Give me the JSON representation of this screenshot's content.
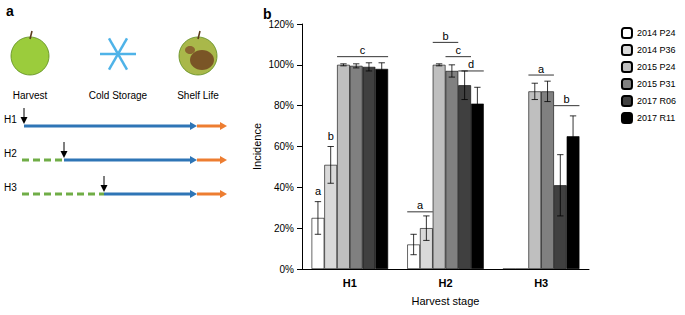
{
  "panel_a": {
    "label": "a",
    "stages": [
      "Harvest",
      "Cold Storage",
      "Shelf Life"
    ],
    "rows": [
      "H1",
      "H2",
      "H3"
    ]
  },
  "chart_data": {
    "type": "bar",
    "title": "b",
    "x_label": "Harvest stage",
    "y_label": "Incidence",
    "categories": [
      "H1",
      "H2",
      "H3"
    ],
    "series": [
      {
        "name": "2014 P24",
        "color": "#ffffff",
        "values": [
          25,
          12,
          0
        ],
        "errors": [
          8,
          5,
          0
        ]
      },
      {
        "name": "2014 P36",
        "color": "#d9d9d9",
        "values": [
          51,
          20,
          0
        ],
        "errors": [
          9,
          6,
          0
        ]
      },
      {
        "name": "2015 P24",
        "color": "#bfbfbf",
        "values": [
          100,
          100,
          87
        ],
        "errors": [
          0.5,
          0.5,
          4
        ]
      },
      {
        "name": "2015 P31",
        "color": "#808080",
        "values": [
          99.5,
          97,
          87
        ],
        "errors": [
          1,
          3,
          5
        ]
      },
      {
        "name": "2017 R06",
        "color": "#404040",
        "values": [
          99,
          90,
          41
        ],
        "errors": [
          2,
          7,
          15
        ]
      },
      {
        "name": "2017 R11",
        "color": "#000000",
        "values": [
          98,
          81,
          65
        ],
        "errors": [
          3,
          8,
          10
        ]
      }
    ],
    "annotations": [
      {
        "text": "a",
        "category": "H1",
        "from": "2014 P24",
        "to": "2014 P24",
        "y": 35,
        "line": false
      },
      {
        "text": "b",
        "category": "H1",
        "from": "2014 P36",
        "to": "2014 P36",
        "y": 62,
        "line": false
      },
      {
        "text": "c",
        "category": "H1",
        "from": "2015 P24",
        "to": "2017 R11",
        "y": 104,
        "line": true
      },
      {
        "text": "a",
        "category": "H2",
        "from": "2014 P24",
        "to": "2014 P36",
        "y": 28,
        "line": true
      },
      {
        "text": "b",
        "category": "H2",
        "from": "2015 P24",
        "to": "2015 P31",
        "y": 111,
        "line": true
      },
      {
        "text": "c",
        "category": "H2",
        "from": "2015 P31",
        "to": "2017 R06",
        "y": 104,
        "line": true
      },
      {
        "text": "d",
        "category": "H2",
        "from": "2017 R06",
        "to": "2017 R11",
        "y": 97,
        "line": true
      },
      {
        "text": "a",
        "category": "H3",
        "from": "2015 P24",
        "to": "2015 P31",
        "y": 95,
        "line": true
      },
      {
        "text": "b",
        "category": "H3",
        "from": "2017 R06",
        "to": "2017 R11",
        "y": 80,
        "line": true
      }
    ],
    "ylim": [
      0,
      120
    ],
    "yticks": [
      {
        "value": 0,
        "label": "0%"
      },
      {
        "value": 20,
        "label": "20%"
      },
      {
        "value": 40,
        "label": "40%"
      },
      {
        "value": 60,
        "label": "60%"
      },
      {
        "value": 80,
        "label": "80%"
      },
      {
        "value": 100,
        "label": "100%"
      },
      {
        "value": 120,
        "label": "120%"
      }
    ],
    "grid": false,
    "legend": "right"
  }
}
